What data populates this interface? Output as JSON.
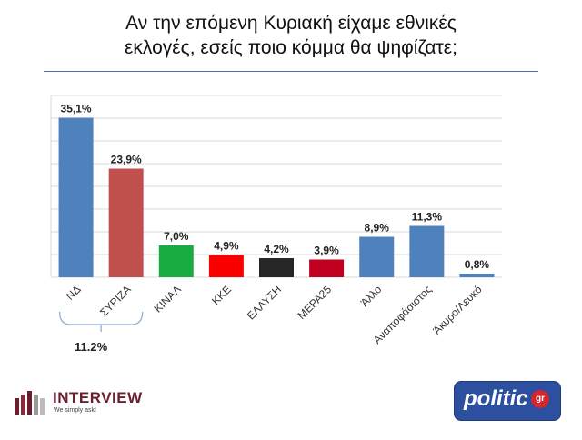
{
  "title_line1": "Αν την επόμενη Κυριακή είχαμε εθνικές",
  "title_line2": "εκλογές, εσείς ποιο κόμμα θα ψηφίζατε;",
  "combined_label": "11.2%",
  "brand_left": {
    "name": "INTERVIEW",
    "tagline": "We simply ask!"
  },
  "brand_right": {
    "name": "politic",
    "suffix": "gr"
  },
  "chart_data": {
    "type": "bar",
    "categories": [
      "ΝΔ",
      "ΣΥΡΙΖΑ",
      "ΚΙΝΑΛ",
      "ΚΚΕ",
      "ΕΛΛΥΣΗ",
      "ΜΕΡΑ25",
      "Άλλο",
      "Αναποφάσιστος",
      "Άκυρο/Λευκό"
    ],
    "values": [
      35.1,
      23.9,
      7.0,
      4.9,
      4.2,
      3.9,
      8.9,
      11.3,
      0.8
    ],
    "data_labels": [
      "35,1%",
      "23,9%",
      "7,0%",
      "4,9%",
      "4,2%",
      "3,9%",
      "8,9%",
      "11,3%",
      "0,8%"
    ],
    "colors": [
      "#4f81bd",
      "#c0504d",
      "#1aab40",
      "#fa0000",
      "#262626",
      "#c0001e",
      "#4f81bd",
      "#4f81bd",
      "#4f81bd"
    ],
    "ylim": [
      0,
      40
    ],
    "grid": true,
    "bracket_categories": [
      "ΝΔ",
      "ΣΥΡΙΖΑ"
    ],
    "xlabel": "",
    "ylabel": ""
  }
}
